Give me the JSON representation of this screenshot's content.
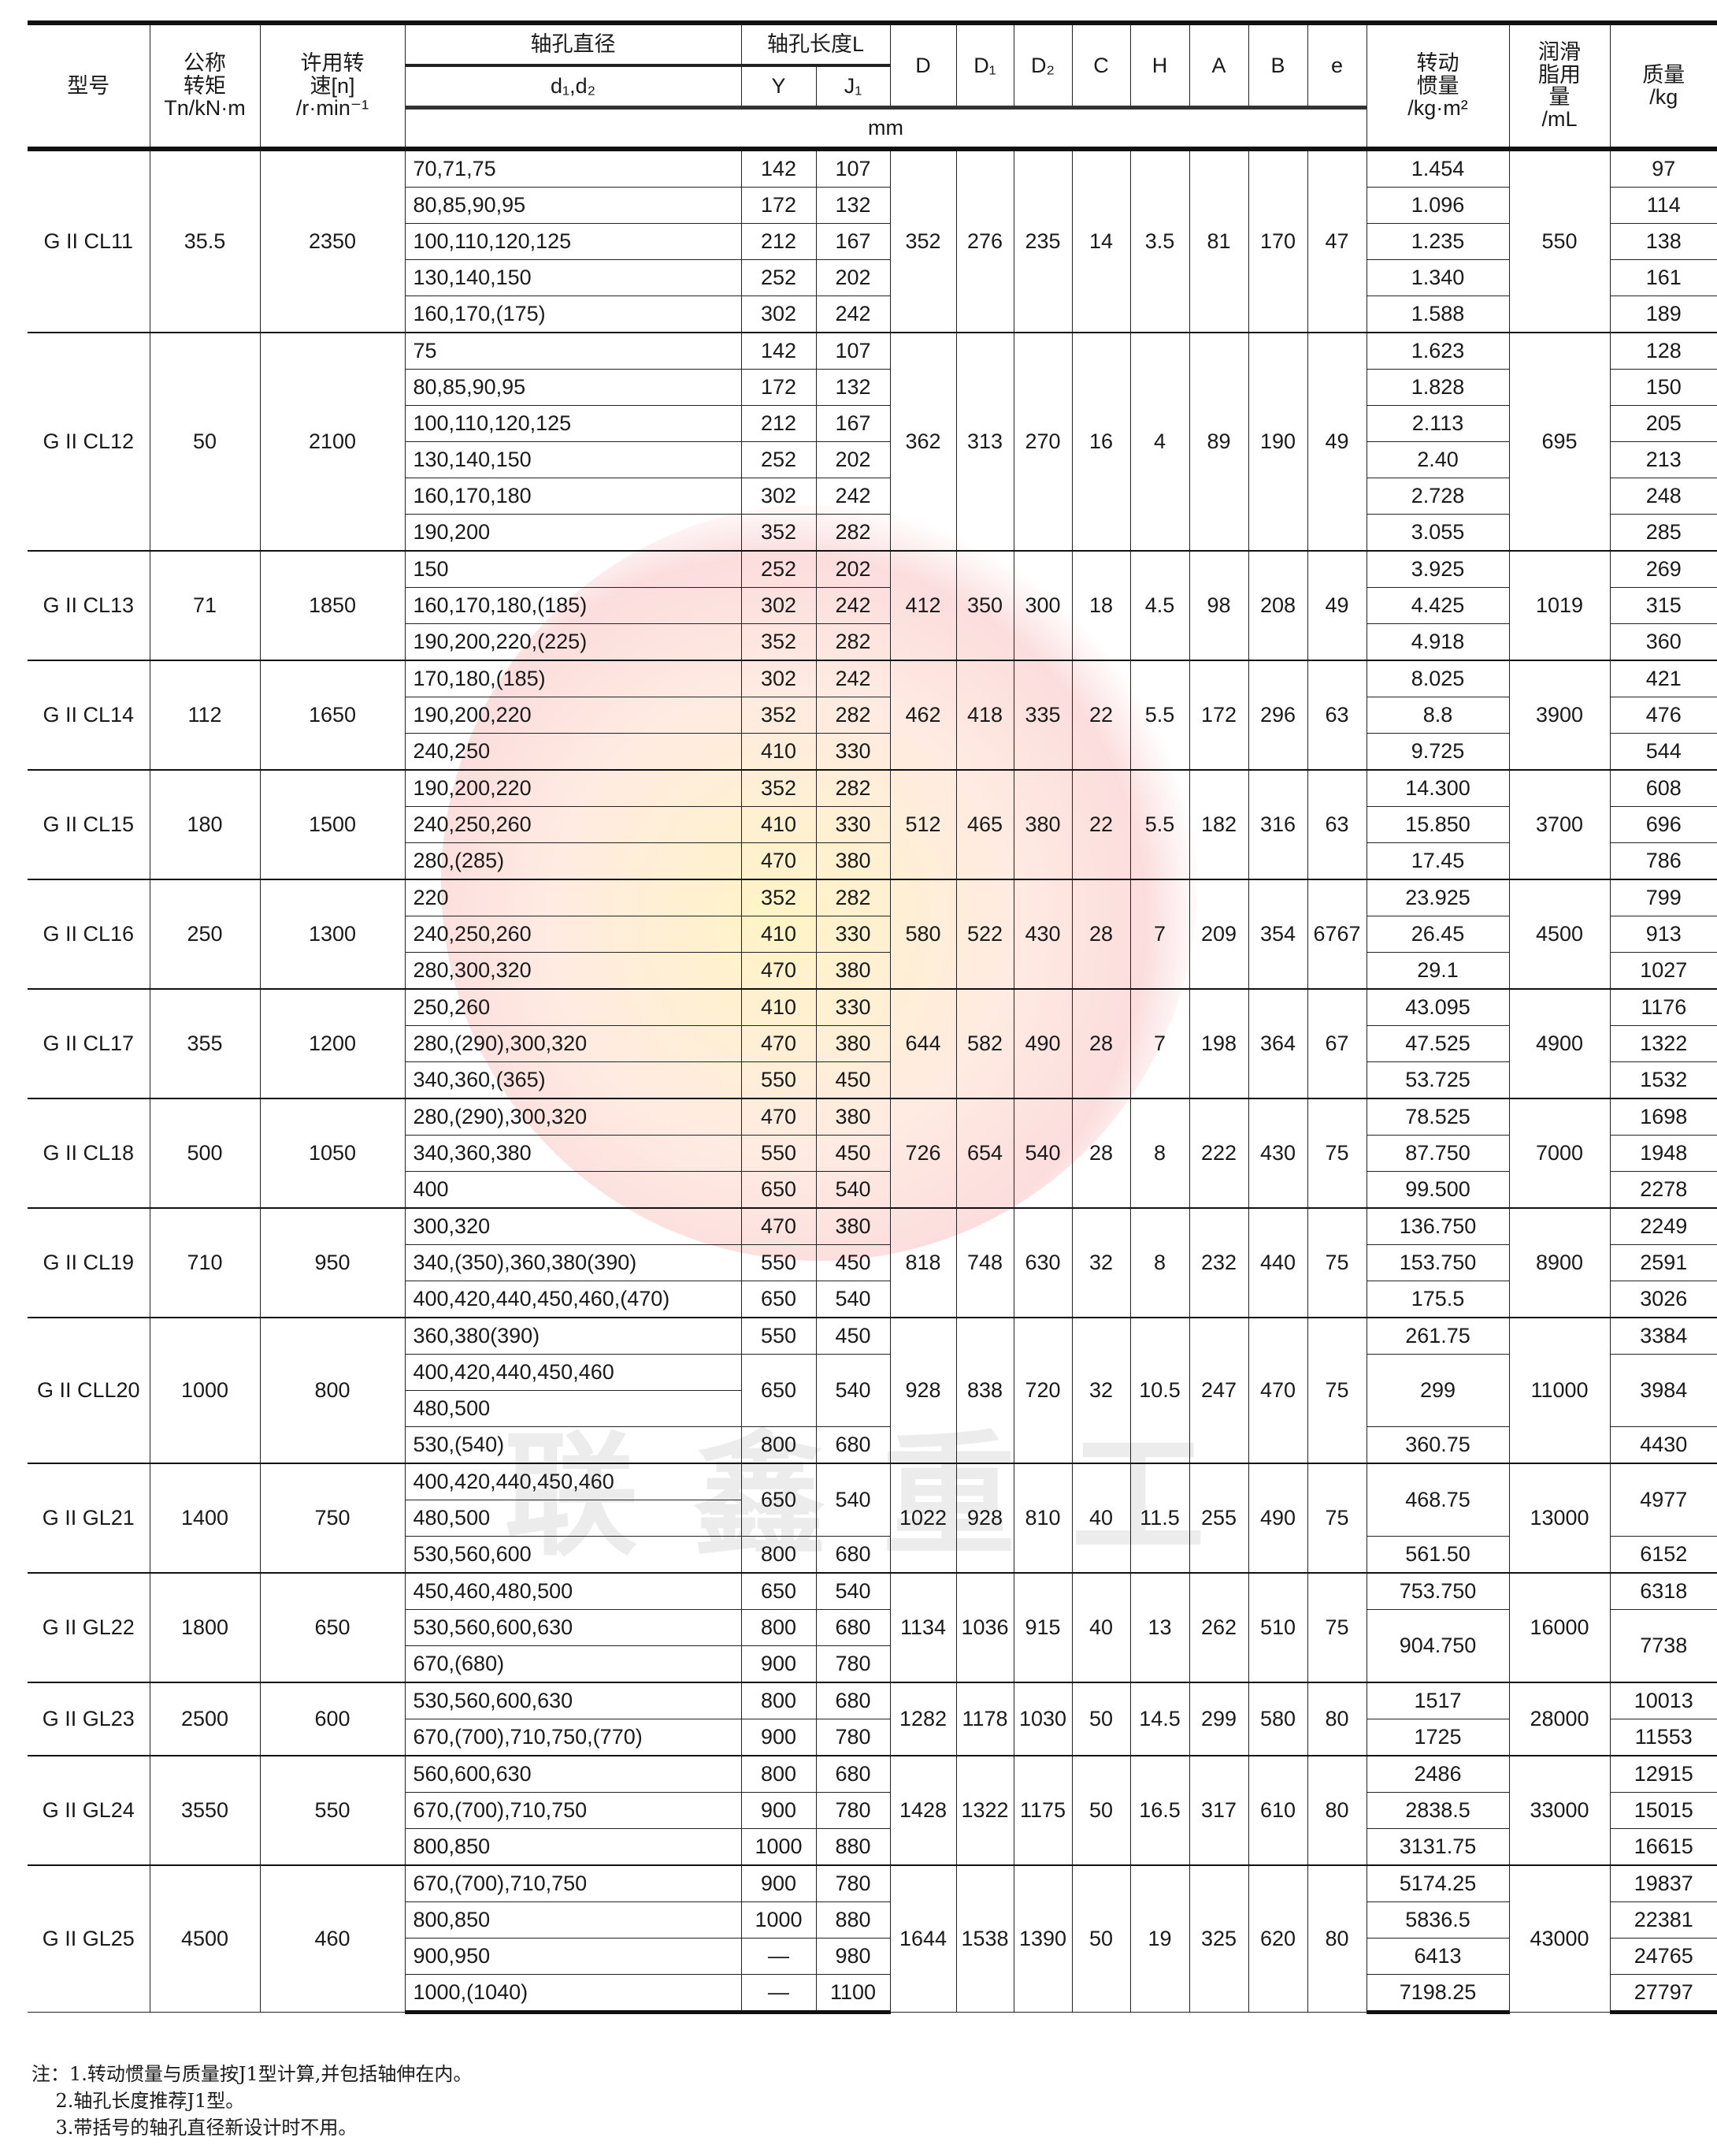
{
  "watermark": {
    "text": "联鑫重工",
    "logo_colors": [
      "#f07878",
      "#ffeb96"
    ]
  },
  "header": {
    "model": "型号",
    "torque": "公称转矩",
    "torque_unit": "Tn/kN·m",
    "speed": "许用转速[n]",
    "speed_unit": "/r·min⁻¹",
    "bore_dia": "轴孔直径",
    "bore_len": "轴孔长度L",
    "d_label": "d₁,d₂",
    "Y": "Y",
    "J1": "J₁",
    "dims": [
      "D",
      "D₁",
      "D₂",
      "C",
      "H",
      "A",
      "B",
      "e"
    ],
    "mm": "mm",
    "inertia": "转动惯量",
    "inertia_unit": "/kg·m²",
    "grease": "润滑脂用量",
    "grease_unit": "/mL",
    "mass": "质量",
    "mass_unit": "/kg"
  },
  "groups": [
    {
      "model": "G II CL11",
      "torque": "35.5",
      "speed": "2350",
      "d": [
        "70,71,75",
        "80,85,90,95",
        "100,110,120,125",
        "130,140,150",
        "160,170,(175)"
      ],
      "yj": [
        {
          "Y": "142",
          "J1": "107"
        },
        {
          "Y": "172",
          "J1": "132"
        },
        {
          "Y": "212",
          "J1": "167"
        },
        {
          "Y": "252",
          "J1": "202"
        },
        {
          "Y": "302",
          "J1": "242"
        }
      ],
      "dims": [
        "352",
        "276",
        "235",
        "14",
        "3.5",
        "81",
        "170",
        "47"
      ],
      "inertia": [
        {
          "v": "1.454"
        },
        {
          "v": "1.096"
        },
        {
          "v": "1.235"
        },
        {
          "v": "1.340"
        },
        {
          "v": "1.588"
        }
      ],
      "grease": "550",
      "mass": [
        {
          "v": "97"
        },
        {
          "v": "114"
        },
        {
          "v": "138"
        },
        {
          "v": "161"
        },
        {
          "v": "189"
        }
      ]
    },
    {
      "model": "G II CL12",
      "torque": "50",
      "speed": "2100",
      "d": [
        "75",
        "80,85,90,95",
        "100,110,120,125",
        "130,140,150",
        "160,170,180",
        "190,200"
      ],
      "yj": [
        {
          "Y": "142",
          "J1": "107"
        },
        {
          "Y": "172",
          "J1": "132"
        },
        {
          "Y": "212",
          "J1": "167"
        },
        {
          "Y": "252",
          "J1": "202"
        },
        {
          "Y": "302",
          "J1": "242"
        },
        {
          "Y": "352",
          "J1": "282"
        }
      ],
      "dims": [
        "362",
        "313",
        "270",
        "16",
        "4",
        "89",
        "190",
        "49"
      ],
      "inertia": [
        {
          "v": "1.623"
        },
        {
          "v": "1.828"
        },
        {
          "v": "2.113"
        },
        {
          "v": "2.40"
        },
        {
          "v": "2.728"
        },
        {
          "v": "3.055"
        }
      ],
      "grease": "695",
      "mass": [
        {
          "v": "128"
        },
        {
          "v": "150"
        },
        {
          "v": "205"
        },
        {
          "v": "213"
        },
        {
          "v": "248"
        },
        {
          "v": "285"
        }
      ]
    },
    {
      "model": "G II CL13",
      "torque": "71",
      "speed": "1850",
      "d": [
        "150",
        "160,170,180,(185)",
        "190,200,220,(225)"
      ],
      "yj": [
        {
          "Y": "252",
          "J1": "202"
        },
        {
          "Y": "302",
          "J1": "242"
        },
        {
          "Y": "352",
          "J1": "282"
        }
      ],
      "dims": [
        "412",
        "350",
        "300",
        "18",
        "4.5",
        "98",
        "208",
        "49"
      ],
      "inertia": [
        {
          "v": "3.925"
        },
        {
          "v": "4.425"
        },
        {
          "v": "4.918"
        }
      ],
      "grease": "1019",
      "mass": [
        {
          "v": "269"
        },
        {
          "v": "315"
        },
        {
          "v": "360"
        }
      ]
    },
    {
      "model": "G II CL14",
      "torque": "112",
      "speed": "1650",
      "d": [
        "170,180,(185)",
        "190,200,220",
        "240,250"
      ],
      "yj": [
        {
          "Y": "302",
          "J1": "242"
        },
        {
          "Y": "352",
          "J1": "282"
        },
        {
          "Y": "410",
          "J1": "330"
        }
      ],
      "dims": [
        "462",
        "418",
        "335",
        "22",
        "5.5",
        "172",
        "296",
        "63"
      ],
      "inertia": [
        {
          "v": "8.025"
        },
        {
          "v": "8.8"
        },
        {
          "v": "9.725"
        }
      ],
      "grease": "3900",
      "mass": [
        {
          "v": "421"
        },
        {
          "v": "476"
        },
        {
          "v": "544"
        }
      ]
    },
    {
      "model": "G II CL15",
      "torque": "180",
      "speed": "1500",
      "d": [
        "190,200,220",
        "240,250,260",
        "280,(285)"
      ],
      "yj": [
        {
          "Y": "352",
          "J1": "282"
        },
        {
          "Y": "410",
          "J1": "330"
        },
        {
          "Y": "470",
          "J1": "380"
        }
      ],
      "dims": [
        "512",
        "465",
        "380",
        "22",
        "5.5",
        "182",
        "316",
        "63"
      ],
      "inertia": [
        {
          "v": "14.300"
        },
        {
          "v": "15.850"
        },
        {
          "v": "17.45"
        }
      ],
      "grease": "3700",
      "mass": [
        {
          "v": "608"
        },
        {
          "v": "696"
        },
        {
          "v": "786"
        }
      ]
    },
    {
      "model": "G II CL16",
      "torque": "250",
      "speed": "1300",
      "d": [
        "220",
        "240,250,260",
        "280,300,320"
      ],
      "yj": [
        {
          "Y": "352",
          "J1": "282"
        },
        {
          "Y": "410",
          "J1": "330"
        },
        {
          "Y": "470",
          "J1": "380"
        }
      ],
      "dims": [
        "580",
        "522",
        "430",
        "28",
        "7",
        "209",
        "354",
        "6767"
      ],
      "inertia": [
        {
          "v": "23.925"
        },
        {
          "v": "26.45"
        },
        {
          "v": "29.1"
        }
      ],
      "grease": "4500",
      "mass": [
        {
          "v": "799"
        },
        {
          "v": "913"
        },
        {
          "v": "1027"
        }
      ]
    },
    {
      "model": "G II CL17",
      "torque": "355",
      "speed": "1200",
      "d": [
        "250,260",
        "280,(290),300,320",
        "340,360,(365)"
      ],
      "yj": [
        {
          "Y": "410",
          "J1": "330"
        },
        {
          "Y": "470",
          "J1": "380"
        },
        {
          "Y": "550",
          "J1": "450"
        }
      ],
      "dims": [
        "644",
        "582",
        "490",
        "28",
        "7",
        "198",
        "364",
        "67"
      ],
      "inertia": [
        {
          "v": "43.095"
        },
        {
          "v": "47.525"
        },
        {
          "v": "53.725"
        }
      ],
      "grease": "4900",
      "mass": [
        {
          "v": "1176"
        },
        {
          "v": "1322"
        },
        {
          "v": "1532"
        }
      ]
    },
    {
      "model": "G II CL18",
      "torque": "500",
      "speed": "1050",
      "d": [
        "280,(290),300,320",
        "340,360,380",
        "400"
      ],
      "yj": [
        {
          "Y": "470",
          "J1": "380"
        },
        {
          "Y": "550",
          "J1": "450"
        },
        {
          "Y": "650",
          "J1": "540"
        }
      ],
      "dims": [
        "726",
        "654",
        "540",
        "28",
        "8",
        "222",
        "430",
        "75"
      ],
      "inertia": [
        {
          "v": "78.525"
        },
        {
          "v": "87.750"
        },
        {
          "v": "99.500"
        }
      ],
      "grease": "7000",
      "mass": [
        {
          "v": "1698"
        },
        {
          "v": "1948"
        },
        {
          "v": "2278"
        }
      ]
    },
    {
      "model": "G II CL19",
      "torque": "710",
      "speed": "950",
      "d": [
        "300,320",
        "340,(350),360,380(390)",
        "400,420,440,450,460,(470)"
      ],
      "yj": [
        {
          "Y": "470",
          "J1": "380"
        },
        {
          "Y": "550",
          "J1": "450"
        },
        {
          "Y": "650",
          "J1": "540"
        }
      ],
      "dims": [
        "818",
        "748",
        "630",
        "32",
        "8",
        "232",
        "440",
        "75"
      ],
      "inertia": [
        {
          "v": "136.750"
        },
        {
          "v": "153.750"
        },
        {
          "v": "175.5"
        }
      ],
      "grease": "8900",
      "mass": [
        {
          "v": "2249"
        },
        {
          "v": "2591"
        },
        {
          "v": "3026"
        }
      ]
    },
    {
      "model": "G II CLL20",
      "torque": "1000",
      "speed": "800",
      "d": [
        "360,380(390)",
        "400,420,440,450,460",
        "480,500",
        "530,(540)"
      ],
      "yj": [
        {
          "Y": "550",
          "J1": "450"
        },
        {
          "Y": "650",
          "J1": "540",
          "rows": 2
        },
        {
          "Y": "800",
          "J1": "680"
        }
      ],
      "dims": [
        "928",
        "838",
        "720",
        "32",
        "10.5",
        "247",
        "470",
        "75"
      ],
      "inertia": [
        {
          "v": "261.75"
        },
        {
          "v": "299",
          "rows": 2
        },
        {
          "v": "360.75"
        }
      ],
      "grease": "11000",
      "mass": [
        {
          "v": "3384"
        },
        {
          "v": "3984",
          "rows": 2
        },
        {
          "v": "4430"
        }
      ]
    },
    {
      "model": "G II GL21",
      "torque": "1400",
      "speed": "750",
      "d": [
        "400,420,440,450,460",
        "480,500",
        "530,560,600"
      ],
      "yj": [
        {
          "Y": "650",
          "J1": "540",
          "rows": 2
        },
        {
          "Y": "800",
          "J1": "680"
        }
      ],
      "dims": [
        "1022",
        "928",
        "810",
        "40",
        "11.5",
        "255",
        "490",
        "75"
      ],
      "inertia": [
        {
          "v": "468.75",
          "rows": 2
        },
        {
          "v": "561.50"
        }
      ],
      "grease": "13000",
      "mass": [
        {
          "v": "4977",
          "rows": 2
        },
        {
          "v": "6152"
        }
      ]
    },
    {
      "model": "G II GL22",
      "torque": "1800",
      "speed": "650",
      "d": [
        "450,460,480,500",
        "530,560,600,630",
        "670,(680)"
      ],
      "yj": [
        {
          "Y": "650",
          "J1": "540"
        },
        {
          "Y": "800",
          "J1": "680"
        },
        {
          "Y": "900",
          "J1": "780"
        }
      ],
      "dims": [
        "1134",
        "1036",
        "915",
        "40",
        "13",
        "262",
        "510",
        "75"
      ],
      "inertia": [
        {
          "v": "753.750"
        },
        {
          "v": "904.750",
          "rows": 2
        }
      ],
      "grease": "16000",
      "mass": [
        {
          "v": "6318"
        },
        {
          "v": "7738",
          "rows": 2
        }
      ]
    },
    {
      "model": "G II GL23",
      "torque": "2500",
      "speed": "600",
      "d": [
        "530,560,600,630",
        "670,(700),710,750,(770)"
      ],
      "yj": [
        {
          "Y": "800",
          "J1": "680"
        },
        {
          "Y": "900",
          "J1": "780"
        }
      ],
      "dims": [
        "1282",
        "1178",
        "1030",
        "50",
        "14.5",
        "299",
        "580",
        "80"
      ],
      "inertia": [
        {
          "v": "1517"
        },
        {
          "v": "1725"
        }
      ],
      "grease": "28000",
      "mass": [
        {
          "v": "10013"
        },
        {
          "v": "11553"
        }
      ]
    },
    {
      "model": "G II GL24",
      "torque": "3550",
      "speed": "550",
      "d": [
        "560,600,630",
        "670,(700),710,750",
        "800,850"
      ],
      "yj": [
        {
          "Y": "800",
          "J1": "680"
        },
        {
          "Y": "900",
          "J1": "780"
        },
        {
          "Y": "1000",
          "J1": "880"
        }
      ],
      "dims": [
        "1428",
        "1322",
        "1175",
        "50",
        "16.5",
        "317",
        "610",
        "80"
      ],
      "inertia": [
        {
          "v": "2486"
        },
        {
          "v": "2838.5"
        },
        {
          "v": "3131.75"
        }
      ],
      "grease": "33000",
      "mass": [
        {
          "v": "12915"
        },
        {
          "v": "15015"
        },
        {
          "v": "16615"
        }
      ]
    },
    {
      "model": "G II GL25",
      "torque": "4500",
      "speed": "460",
      "d": [
        "670,(700),710,750",
        "800,850",
        "900,950",
        "1000,(1040)"
      ],
      "yj": [
        {
          "Y": "900",
          "J1": "780"
        },
        {
          "Y": "1000",
          "J1": "880"
        },
        {
          "Y": "—",
          "J1": "980"
        },
        {
          "Y": "—",
          "J1": "1100"
        }
      ],
      "dims": [
        "1644",
        "1538",
        "1390",
        "50",
        "19",
        "325",
        "620",
        "80"
      ],
      "inertia": [
        {
          "v": "5174.25"
        },
        {
          "v": "5836.5"
        },
        {
          "v": "6413"
        },
        {
          "v": "7198.25"
        }
      ],
      "grease": "43000",
      "mass": [
        {
          "v": "19837"
        },
        {
          "v": "22381"
        },
        {
          "v": "24765"
        },
        {
          "v": "27797"
        }
      ]
    }
  ],
  "notes": [
    "注：1.转动惯量与质量按J1型计算,并包括轴伸在内。",
    "    2.轴孔长度推荐J1型。",
    "    3.带括号的轴孔直径新设计时不用。"
  ]
}
